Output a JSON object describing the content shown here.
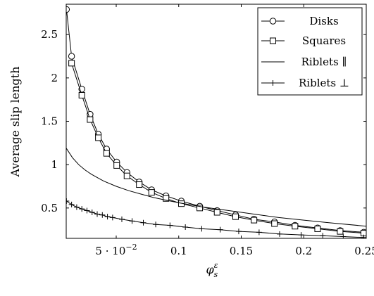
{
  "chart_data": {
    "type": "line",
    "xlabel_base": "φ",
    "xlabel_sup": "ε",
    "xlabel_sub": "s",
    "ylabel": "Average slip length",
    "xlim": [
      0.01,
      0.25
    ],
    "ylim": [
      0.15,
      2.85
    ],
    "grid": false,
    "legend_position": "top-right",
    "x_ticks": [
      {
        "value": 0.05,
        "mantissa": "5 · 10",
        "exponent": "−2"
      },
      {
        "value": 0.1,
        "label": "0.1"
      },
      {
        "value": 0.15,
        "label": "0.15"
      },
      {
        "value": 0.2,
        "label": "0.2"
      },
      {
        "value": 0.25,
        "label": "0.25"
      }
    ],
    "y_ticks": [
      {
        "value": 0.5,
        "label": "0.5"
      },
      {
        "value": 1.0,
        "label": "1"
      },
      {
        "value": 1.5,
        "label": "1.5"
      },
      {
        "value": 2.0,
        "label": "2"
      },
      {
        "value": 2.5,
        "label": "2.5"
      }
    ],
    "series": [
      {
        "name": "Disks",
        "marker": "circle",
        "x": [
          0.0102,
          0.0143,
          0.0225,
          0.0291,
          0.0357,
          0.0423,
          0.0504,
          0.0586,
          0.0684,
          0.0783,
          0.0898,
          0.1021,
          0.1168,
          0.1307,
          0.1455,
          0.1602,
          0.1766,
          0.193,
          0.2111,
          0.2291,
          0.248
        ],
        "y": [
          2.79,
          2.25,
          1.87,
          1.58,
          1.35,
          1.18,
          1.03,
          0.91,
          0.8,
          0.71,
          0.64,
          0.58,
          0.52,
          0.47,
          0.42,
          0.37,
          0.34,
          0.3,
          0.27,
          0.24,
          0.22
        ]
      },
      {
        "name": "Squares",
        "marker": "square",
        "x": [
          0.0143,
          0.0225,
          0.0291,
          0.0357,
          0.0423,
          0.0504,
          0.0586,
          0.0684,
          0.0783,
          0.0898,
          0.1021,
          0.1168,
          0.1307,
          0.1455,
          0.1602,
          0.1766,
          0.193,
          0.2111,
          0.2291,
          0.248
        ],
        "y": [
          2.17,
          1.8,
          1.52,
          1.31,
          1.13,
          0.99,
          0.87,
          0.77,
          0.68,
          0.61,
          0.55,
          0.5,
          0.45,
          0.4,
          0.36,
          0.32,
          0.29,
          0.26,
          0.23,
          0.21
        ]
      },
      {
        "name": "Riblets ∥",
        "marker": "none",
        "x": [
          0.01,
          0.015,
          0.02,
          0.025,
          0.03,
          0.035,
          0.04,
          0.05,
          0.06,
          0.07,
          0.08,
          0.09,
          0.1,
          0.12,
          0.14,
          0.16,
          0.18,
          0.2,
          0.22,
          0.25
        ],
        "y": [
          1.19,
          1.08,
          1.0,
          0.94,
          0.89,
          0.85,
          0.81,
          0.75,
          0.7,
          0.66,
          0.62,
          0.59,
          0.56,
          0.51,
          0.47,
          0.43,
          0.39,
          0.36,
          0.33,
          0.29
        ]
      },
      {
        "name": "Riblets ⊥",
        "marker": "plus",
        "x": [
          0.0102,
          0.0143,
          0.0184,
          0.0225,
          0.0266,
          0.0307,
          0.0348,
          0.0389,
          0.043,
          0.0471,
          0.0545,
          0.0627,
          0.0717,
          0.0816,
          0.093,
          0.1053,
          0.1184,
          0.1332,
          0.148,
          0.1643,
          0.1807,
          0.1979,
          0.2152,
          0.2316,
          0.248
        ],
        "y": [
          0.58,
          0.54,
          0.51,
          0.49,
          0.47,
          0.45,
          0.43,
          0.42,
          0.4,
          0.39,
          0.37,
          0.35,
          0.33,
          0.31,
          0.3,
          0.28,
          0.26,
          0.25,
          0.23,
          0.22,
          0.2,
          0.19,
          0.18,
          0.17,
          0.16
        ]
      }
    ]
  }
}
